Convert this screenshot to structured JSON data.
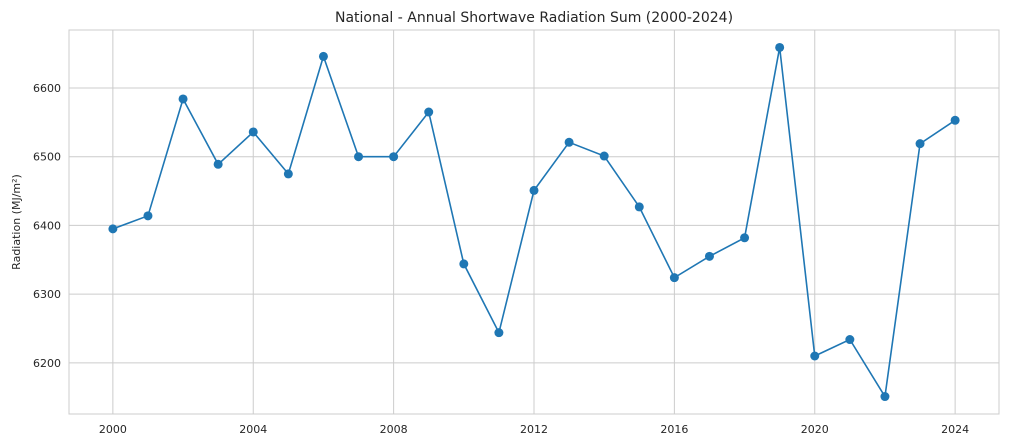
{
  "chart_data": {
    "type": "line",
    "title": "National - Annual Shortwave Radiation Sum (2000-2024)",
    "xlabel": "",
    "ylabel": "Radiation (MJ/m²)",
    "x": [
      2000,
      2001,
      2002,
      2003,
      2004,
      2005,
      2006,
      2007,
      2008,
      2009,
      2010,
      2011,
      2012,
      2013,
      2014,
      2015,
      2016,
      2017,
      2018,
      2019,
      2020,
      2021,
      2022,
      2023,
      2024
    ],
    "series": [
      {
        "values": [
          6395,
          6414,
          6584,
          6489,
          6536,
          6475,
          6646,
          6500,
          6500,
          6565,
          6344,
          6244,
          6451,
          6521,
          6501,
          6427,
          6324,
          6355,
          6382,
          6659,
          6210,
          6234,
          6151,
          6519,
          6553
        ],
        "color": "#1f77b4",
        "marker": "circle"
      }
    ],
    "xticks": [
      2000,
      2004,
      2008,
      2012,
      2016,
      2020,
      2024
    ],
    "yticks": [
      6200,
      6300,
      6400,
      6500,
      6600
    ],
    "xlim": [
      1998.75,
      2025.25
    ],
    "ylim": [
      6125.6,
      6684.4
    ],
    "grid": true,
    "legend": "none"
  }
}
